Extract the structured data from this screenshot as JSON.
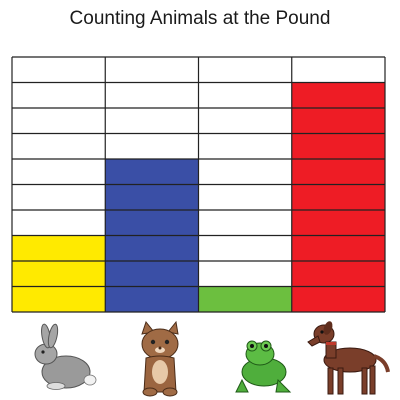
{
  "chart_data": {
    "type": "bar",
    "title": "Counting Animals at the Pound",
    "categories": [
      "Rabbit",
      "Cat",
      "Frog",
      "Dog"
    ],
    "values": [
      3,
      6,
      1,
      9
    ],
    "ylim": [
      0,
      10
    ],
    "colors": [
      "#ffea00",
      "#3a4fa6",
      "#6cbf3f",
      "#ee1c25"
    ],
    "grid": true
  },
  "animal_icons": [
    "rabbit-icon",
    "cat-icon",
    "frog-icon",
    "dog-icon"
  ]
}
